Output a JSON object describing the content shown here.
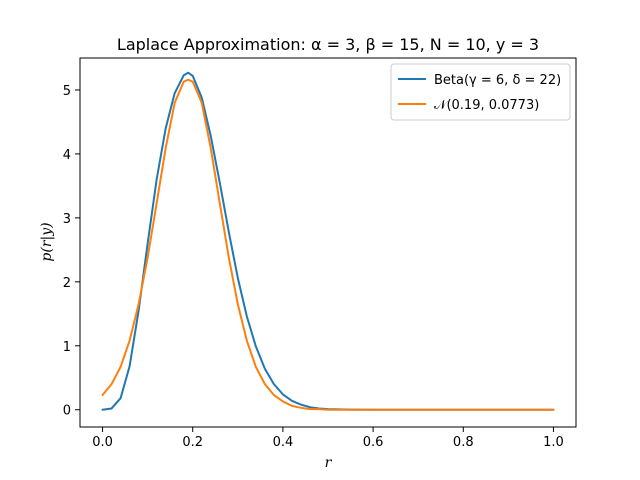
{
  "chart_data": {
    "type": "line",
    "title": "Laplace Approximation: α = 3, β = 15, N = 10, y = 3",
    "xlabel": "r",
    "ylabel": "p(r|y)",
    "xlim": [
      -0.05,
      1.05
    ],
    "ylim": [
      -0.27,
      5.5
    ],
    "x_ticks": [
      0.0,
      0.2,
      0.4,
      0.6,
      0.8,
      1.0
    ],
    "x_tick_labels": [
      "0.0",
      "0.2",
      "0.4",
      "0.6",
      "0.8",
      "1.0"
    ],
    "y_ticks": [
      0,
      1,
      2,
      3,
      4,
      5
    ],
    "y_tick_labels": [
      "0",
      "1",
      "2",
      "3",
      "4",
      "5"
    ],
    "grid": false,
    "legend_position": "top-right",
    "series": [
      {
        "name": "Beta(γ = 6, δ = 22)",
        "color": "#1f77b4",
        "x": [
          0.0,
          0.02,
          0.04,
          0.06,
          0.08,
          0.1,
          0.12,
          0.14,
          0.16,
          0.18,
          0.19,
          0.2,
          0.22,
          0.24,
          0.26,
          0.28,
          0.3,
          0.32,
          0.34,
          0.36,
          0.38,
          0.4,
          0.42,
          0.44,
          0.46,
          0.48,
          0.5,
          0.55,
          0.6,
          0.7,
          0.8,
          0.9,
          1.0
        ],
        "y": [
          0.0,
          0.02,
          0.18,
          0.68,
          1.55,
          2.6,
          3.6,
          4.4,
          4.95,
          5.23,
          5.27,
          5.22,
          4.88,
          4.28,
          3.55,
          2.78,
          2.06,
          1.46,
          0.99,
          0.64,
          0.4,
          0.24,
          0.14,
          0.08,
          0.04,
          0.02,
          0.01,
          0.002,
          0.0,
          0.0,
          0.0,
          0.0,
          0.0
        ]
      },
      {
        "name": "𝒩(0.19, 0.0773)",
        "color": "#ff7f0e",
        "x": [
          0.0,
          0.02,
          0.04,
          0.06,
          0.08,
          0.1,
          0.12,
          0.14,
          0.16,
          0.18,
          0.19,
          0.2,
          0.22,
          0.24,
          0.26,
          0.28,
          0.3,
          0.32,
          0.34,
          0.36,
          0.38,
          0.4,
          0.42,
          0.44,
          0.46,
          0.48,
          0.5,
          0.55,
          0.6,
          0.7,
          0.8,
          0.9,
          1.0
        ],
        "y": [
          0.23,
          0.4,
          0.67,
          1.08,
          1.65,
          2.38,
          3.23,
          4.09,
          4.8,
          5.13,
          5.16,
          5.13,
          4.8,
          4.09,
          3.23,
          2.38,
          1.65,
          1.08,
          0.67,
          0.4,
          0.23,
          0.13,
          0.06,
          0.03,
          0.01,
          0.01,
          0.0,
          0.0,
          0.0,
          0.0,
          0.0,
          0.0,
          0.0
        ]
      }
    ]
  }
}
